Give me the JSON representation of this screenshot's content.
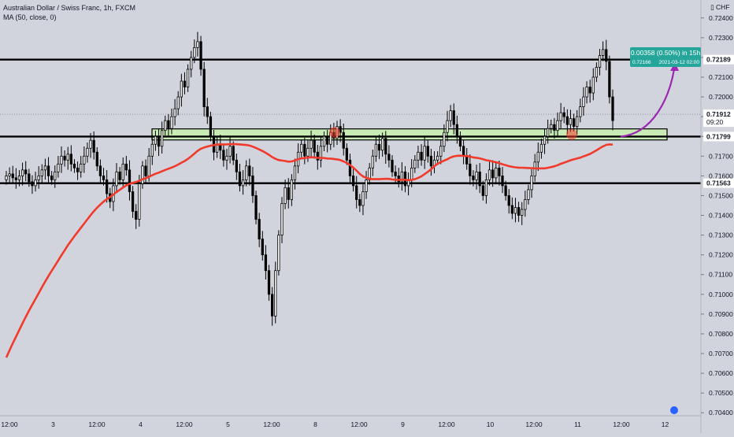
{
  "header": {
    "symbol_title": "Australian Dollar / Swiss Franc, 1h, FXCM",
    "indicator": "MA (50, close, 0)",
    "currency": "CHF"
  },
  "colors": {
    "background": "#d1d4dc",
    "up_candle": "#ffffff",
    "down_candle": "#000000",
    "ma_line": "#f23a2c",
    "support_zone": "#c8f0b0",
    "projection_arrow": "#9c27b0",
    "label_green": "#26a69a"
  },
  "projection": {
    "change_text": "0.00358 (0.50%) in 15h",
    "target_price": "0.72166",
    "target_time": "2021-03-12  02:00"
  },
  "price_labels": {
    "resistance": "0.72189",
    "current": "0.71912",
    "countdown": "09:20",
    "support": "0.71799",
    "lower_support": "0.71563"
  },
  "chart_data": {
    "type": "candlestick",
    "y_ticks": [
      "0.72400",
      "0.72300",
      "0.72200",
      "0.72100",
      "0.72000",
      "0.71900",
      "0.71800",
      "0.71700",
      "0.71600",
      "0.71500",
      "0.71400",
      "0.71300",
      "0.71200",
      "0.71100",
      "0.71000",
      "0.70900",
      "0.70800",
      "0.70700",
      "0.70600",
      "0.70500",
      "0.70400"
    ],
    "x_ticks": [
      "12:00",
      "3",
      "12:00",
      "4",
      "12:00",
      "5",
      "12:00",
      "8",
      "12:00",
      "9",
      "12:00",
      "10",
      "12:00",
      "11",
      "12:00",
      "12"
    ],
    "ylim": [
      0.70385,
      0.72435
    ],
    "horizontal_levels": [
      0.72189,
      0.71799,
      0.71563
    ],
    "support_zone": [
      0.71782,
      0.71838
    ],
    "current_price": 0.71912,
    "close_series": [
      0.716,
      0.7161,
      0.7159,
      0.7158,
      0.716,
      0.7163,
      0.7161,
      0.7157,
      0.7155,
      0.7158,
      0.716,
      0.7163,
      0.7165,
      0.716,
      0.7158,
      0.7162,
      0.7166,
      0.717,
      0.7168,
      0.7171,
      0.7166,
      0.7164,
      0.7162,
      0.7166,
      0.717,
      0.7174,
      0.7178,
      0.7172,
      0.7165,
      0.716,
      0.7158,
      0.7151,
      0.7147,
      0.7155,
      0.7162,
      0.7158,
      0.7166,
      0.7163,
      0.7152,
      0.7142,
      0.7138,
      0.7156,
      0.7165,
      0.716,
      0.717,
      0.7176,
      0.718,
      0.7175,
      0.7183,
      0.7188,
      0.7184,
      0.719,
      0.7194,
      0.72,
      0.7208,
      0.7205,
      0.7214,
      0.722,
      0.7225,
      0.7228,
      0.7214,
      0.7195,
      0.719,
      0.718,
      0.7172,
      0.7176,
      0.7173,
      0.7168,
      0.717,
      0.7175,
      0.7168,
      0.7162,
      0.7155,
      0.7158,
      0.7165,
      0.716,
      0.715,
      0.7138,
      0.7128,
      0.712,
      0.7112,
      0.71,
      0.7089,
      0.7112,
      0.713,
      0.7146,
      0.7154,
      0.7148,
      0.7158,
      0.7165,
      0.7172,
      0.7176,
      0.717,
      0.7174,
      0.7178,
      0.7172,
      0.7168,
      0.7175,
      0.718,
      0.7176,
      0.7182,
      0.7179,
      0.7185,
      0.7182,
      0.7174,
      0.7168,
      0.716,
      0.7155,
      0.7148,
      0.7145,
      0.7152,
      0.7158,
      0.7164,
      0.717,
      0.7176,
      0.7173,
      0.7179,
      0.7171,
      0.7168,
      0.7162,
      0.716,
      0.7157,
      0.7162,
      0.7155,
      0.7158,
      0.7164,
      0.7168,
      0.7172,
      0.7168,
      0.7175,
      0.717,
      0.7165,
      0.7168,
      0.717,
      0.7175,
      0.7182,
      0.7188,
      0.7193,
      0.7186,
      0.718,
      0.7175,
      0.717,
      0.7166,
      0.716,
      0.7158,
      0.7162,
      0.7155,
      0.715,
      0.7158,
      0.7163,
      0.7159,
      0.7164,
      0.716,
      0.7155,
      0.715,
      0.7145,
      0.7141,
      0.7144,
      0.714,
      0.7143,
      0.7148,
      0.7153,
      0.716,
      0.7167,
      0.7172,
      0.7176,
      0.718,
      0.7184,
      0.7186,
      0.7183,
      0.7188,
      0.7192,
      0.719,
      0.7186,
      0.7189,
      0.7185,
      0.719,
      0.7195,
      0.72,
      0.7205,
      0.7202,
      0.721,
      0.7215,
      0.7221,
      0.7224,
      0.7218,
      0.72,
      0.7188
    ]
  }
}
